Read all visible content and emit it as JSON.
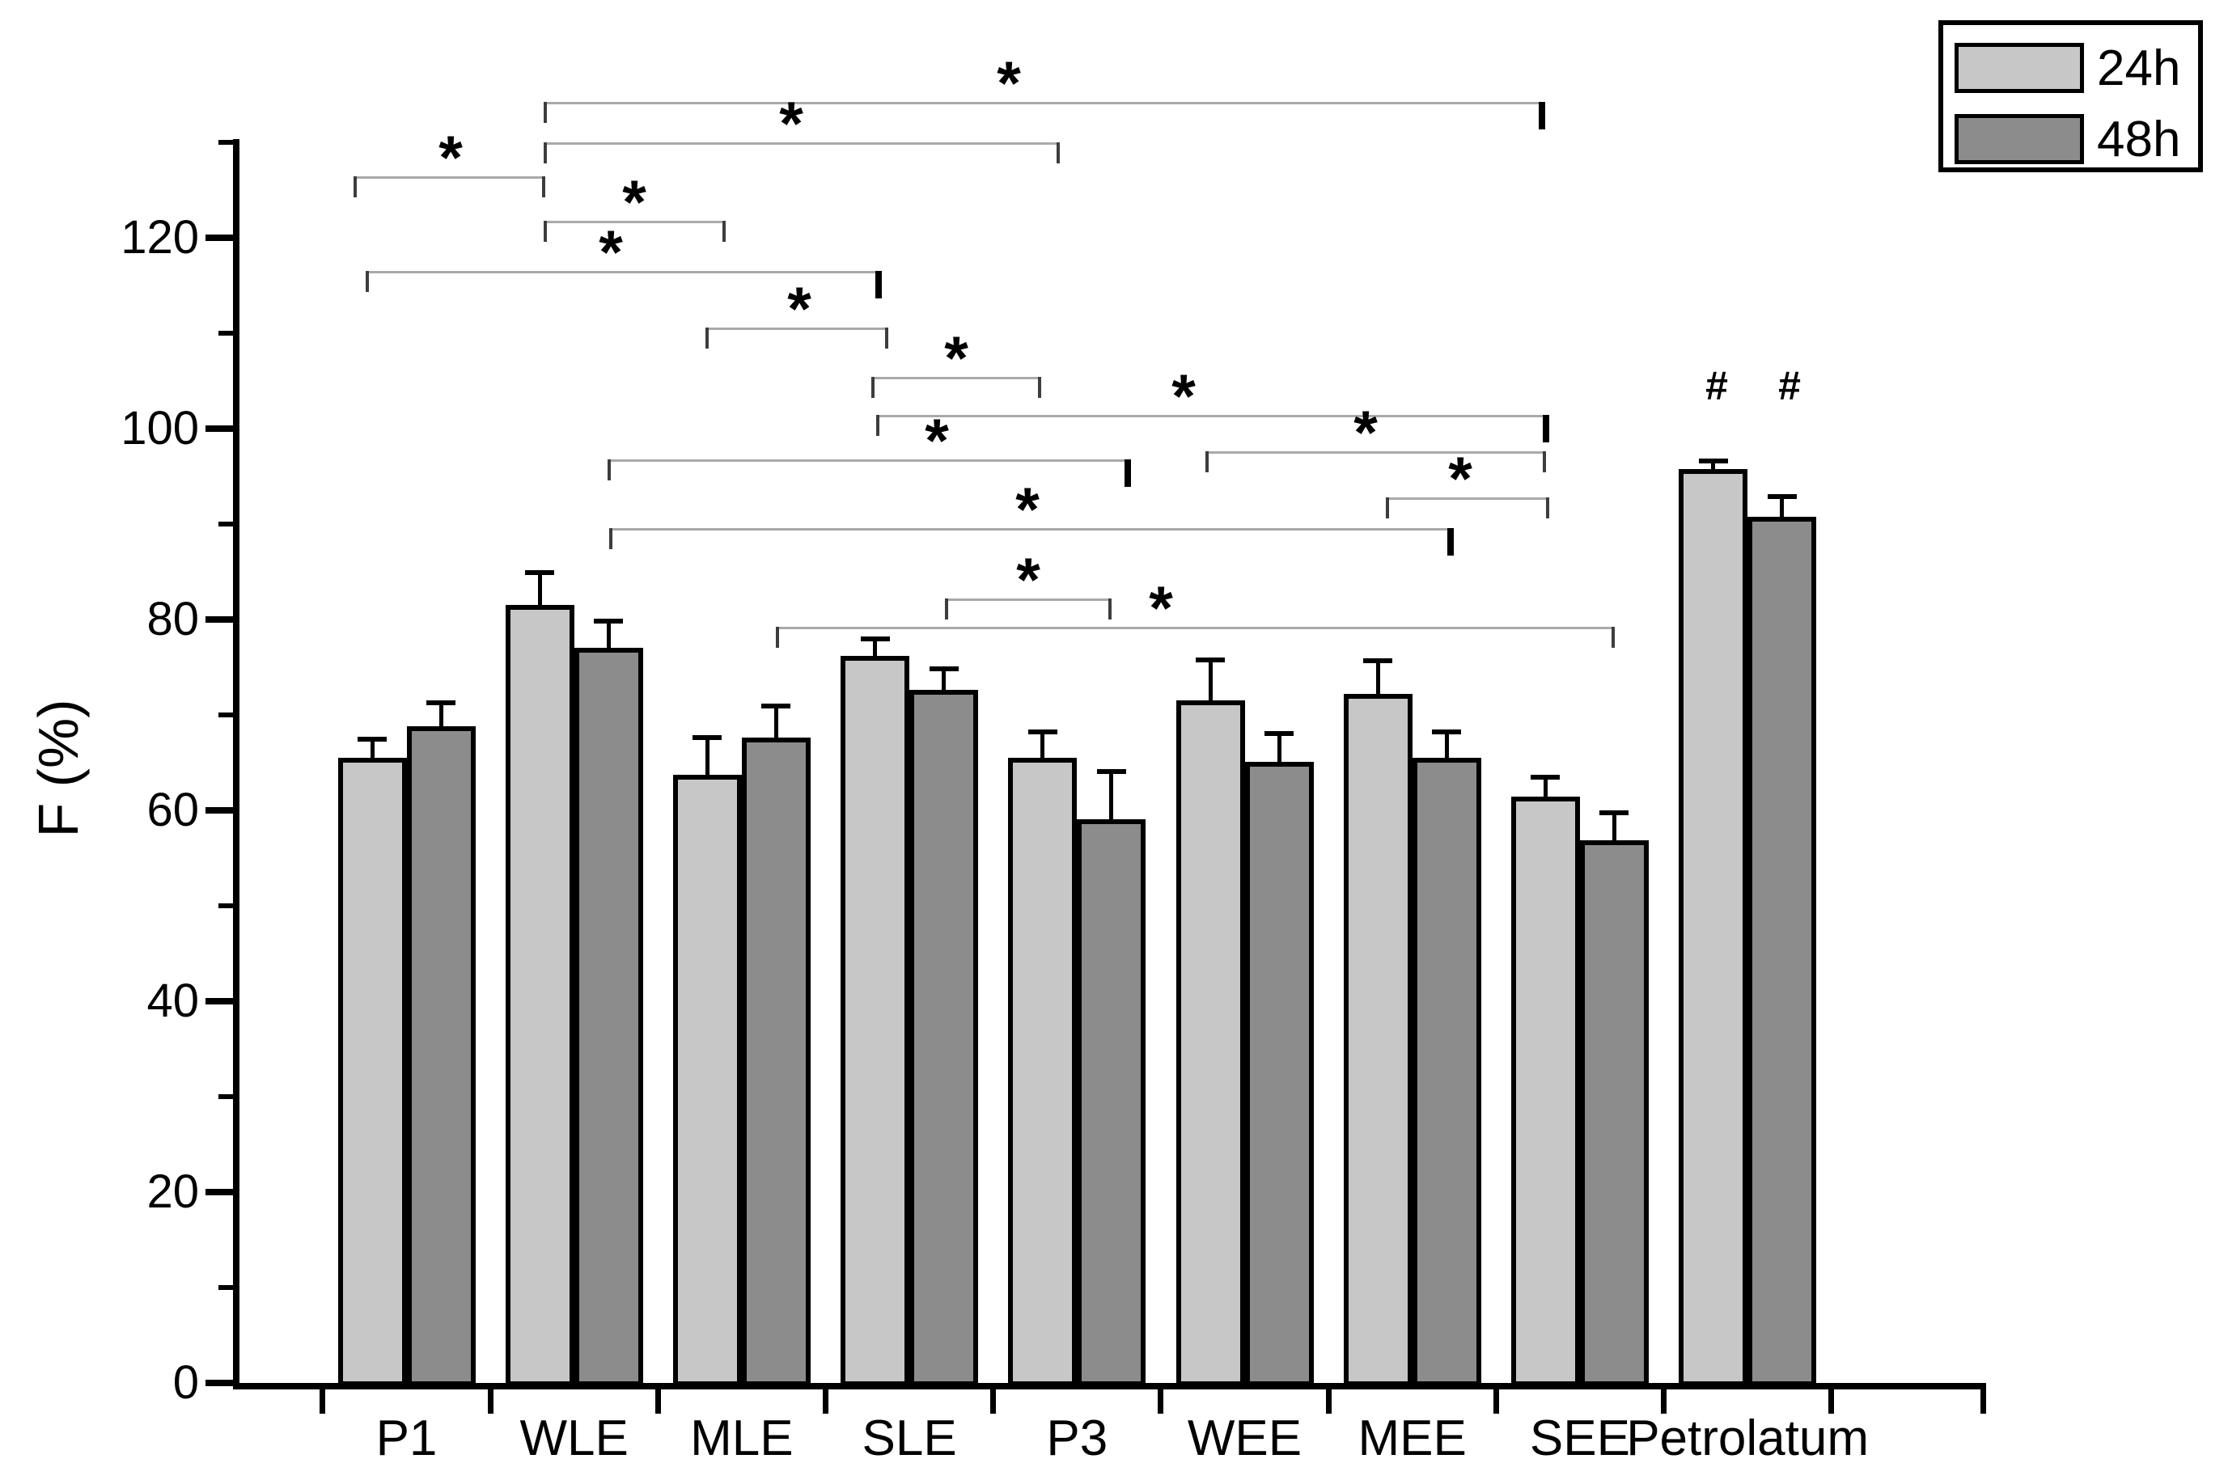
{
  "figure": {
    "background": "#ffffff"
  },
  "axes": {
    "ylabel": "F (%)",
    "yticks": [
      0,
      20,
      40,
      60,
      80,
      100,
      120
    ],
    "ytick_minor": [
      10,
      30,
      50,
      70,
      90,
      110,
      130
    ],
    "ylim": [
      0,
      130
    ]
  },
  "legend": {
    "position": "top-right",
    "items": [
      {
        "label": "24h",
        "color": "#c7c7c7"
      },
      {
        "label": "48h",
        "color": "#8c8c8c"
      }
    ]
  },
  "chart_data": {
    "type": "bar",
    "title": "",
    "xlabel": "",
    "ylabel": "F (%)",
    "ylim": [
      0,
      130
    ],
    "grid": false,
    "categories": [
      "P1",
      "WLE",
      "MLE",
      "SLE",
      "P3",
      "WEE",
      "MEE",
      "SEE",
      "Petrolatum"
    ],
    "series": [
      {
        "name": "24h",
        "color": "#c7c7c7",
        "values": [
          65.5,
          81.5,
          63.7,
          76.2,
          65.5,
          71.5,
          72.2,
          61.4,
          95.8
        ],
        "errors": [
          2.2,
          3.7,
          4.2,
          2.0,
          3.0,
          4.5,
          3.7,
          2.3,
          1.1
        ]
      },
      {
        "name": "48h",
        "color": "#8c8c8c",
        "values": [
          68.8,
          77.0,
          67.6,
          72.6,
          59.1,
          65.1,
          65.5,
          56.9,
          90.8
        ],
        "errors": [
          2.7,
          3.1,
          3.6,
          2.5,
          5.2,
          3.2,
          3.0,
          3.1,
          2.3
        ]
      }
    ],
    "annotations": {
      "star_symbol": "*",
      "hash_symbol": "#",
      "hash_labels": [
        {
          "category": "Petrolatum",
          "series": "24h",
          "x": 2122,
          "y": 477
        },
        {
          "category": "Petrolatum",
          "series": "48h",
          "x": 2212,
          "y": 477
        }
      ],
      "brackets": [
        {
          "compares": "WLE-24h vs SEE-24h",
          "x1": 672,
          "x2": 1910,
          "y": 126,
          "star_x": 1247,
          "thick_right": true
        },
        {
          "compares": "WLE-24h vs P3",
          "x1": 672,
          "x2": 1310,
          "y": 176,
          "star_x": 978,
          "thick_right": false
        },
        {
          "compares": "P1-24h vs WLE-24h",
          "x1": 437,
          "x2": 674,
          "y": 218,
          "star_x": 557,
          "thick_right": false
        },
        {
          "compares": "WLE-24h vs MLE-24h",
          "x1": 672,
          "x2": 897,
          "y": 273,
          "star_x": 784,
          "thick_right": false
        },
        {
          "compares": "P1-24h vs SLE-24h",
          "x1": 452,
          "x2": 1090,
          "y": 335,
          "star_x": 755,
          "thick_right": true
        },
        {
          "compares": "MLE-24h vs SLE-24h",
          "x1": 872,
          "x2": 1098,
          "y": 405,
          "star_x": 988,
          "thick_right": false
        },
        {
          "compares": "SLE-24h vs P3-24h",
          "x1": 1077,
          "x2": 1287,
          "y": 466,
          "star_x": 1182,
          "thick_right": false
        },
        {
          "compares": "SLE-24h vs SEE-24h",
          "x1": 1083,
          "x2": 1915,
          "y": 513,
          "star_x": 1463,
          "thick_right": true
        },
        {
          "compares": "WEE-24h vs SEE-24h",
          "x1": 1490,
          "x2": 1911,
          "y": 558,
          "star_x": 1688,
          "thick_right": false
        },
        {
          "compares": "WLE-48h vs P3-48h",
          "x1": 751,
          "x2": 1398,
          "y": 568,
          "star_x": 1158,
          "thick_right": true
        },
        {
          "compares": "MEE-24h vs SEE-24h",
          "x1": 1713,
          "x2": 1915,
          "y": 615,
          "star_x": 1805,
          "thick_right": false
        },
        {
          "compares": "WLE-48h vs MEE-48h",
          "x1": 753,
          "x2": 1797,
          "y": 653,
          "star_x": 1270,
          "thick_right": true
        },
        {
          "compares": "SLE-48h vs P3-48h",
          "x1": 1168,
          "x2": 1374,
          "y": 740,
          "star_x": 1271,
          "thick_right": false
        },
        {
          "compares": "MLE-48h vs SEE-48h",
          "x1": 959,
          "x2": 1996,
          "y": 775,
          "star_x": 1435,
          "thick_right": false
        }
      ]
    }
  }
}
